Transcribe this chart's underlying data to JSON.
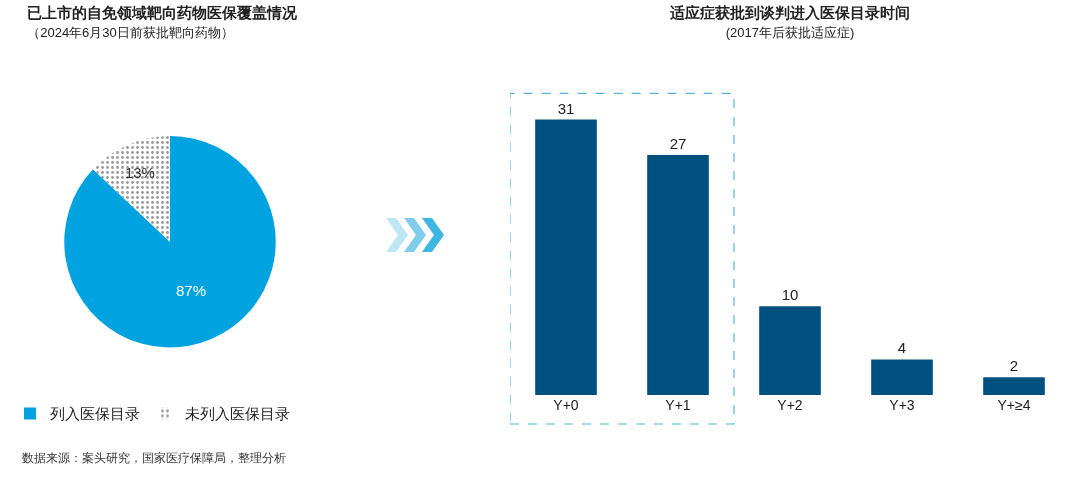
{
  "chart_data": [
    {
      "type": "pie",
      "title": "已上市的自免领域靶向药物医保覆盖情况",
      "subtitle": "（2024年6月30日前获批靶向药物）",
      "categories": [
        "列入医保目录",
        "未列入医保目录"
      ],
      "values": [
        87,
        13
      ],
      "value_labels": [
        "87%",
        "13%"
      ],
      "colors": [
        "#00a3e0",
        "#ffffff"
      ],
      "legend": "bottom left"
    },
    {
      "type": "bar",
      "title": "适应症获批到谈判进入医保目录时间",
      "subtitle": "(2017年后获批适应症)",
      "categories": [
        "Y+0",
        "Y+1",
        "Y+2",
        "Y+3",
        "Y+≥4"
      ],
      "values": [
        31,
        27,
        10,
        4,
        2
      ],
      "color": "#00507f",
      "data_labels": true,
      "annotations": [
        "数据来源：案头研究，国家医疗保障局，整理分析"
      ]
    }
  ]
}
